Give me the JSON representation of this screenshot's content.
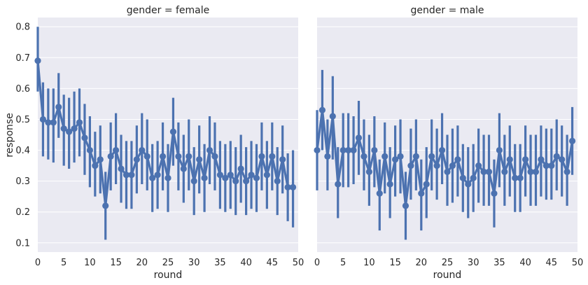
{
  "chart_data": [
    {
      "type": "line",
      "title": "gender = female",
      "xlabel": "round",
      "ylabel": "response",
      "xlim": [
        0,
        50
      ],
      "ylim": [
        0.07,
        0.83
      ],
      "xticks": [
        "0",
        "5",
        "10",
        "15",
        "20",
        "25",
        "30",
        "35",
        "40",
        "45",
        "50"
      ],
      "yticks": [
        "0.1",
        "0.2",
        "0.3",
        "0.4",
        "0.5",
        "0.6",
        "0.7",
        "0.8"
      ],
      "grid": true,
      "color": "#4c72b0",
      "x": [
        0,
        1,
        2,
        3,
        4,
        5,
        6,
        7,
        8,
        9,
        10,
        11,
        12,
        13,
        14,
        15,
        16,
        17,
        18,
        19,
        20,
        21,
        22,
        23,
        24,
        25,
        26,
        27,
        28,
        29,
        30,
        31,
        32,
        33,
        34,
        35,
        36,
        37,
        38,
        39,
        40,
        41,
        42,
        43,
        44,
        45,
        46,
        47,
        48,
        49
      ],
      "y": [
        0.69,
        0.5,
        0.49,
        0.49,
        0.54,
        0.47,
        0.46,
        0.47,
        0.49,
        0.44,
        0.4,
        0.35,
        0.37,
        0.22,
        0.38,
        0.4,
        0.34,
        0.32,
        0.32,
        0.37,
        0.4,
        0.38,
        0.31,
        0.32,
        0.38,
        0.31,
        0.46,
        0.38,
        0.34,
        0.38,
        0.3,
        0.37,
        0.31,
        0.4,
        0.38,
        0.32,
        0.31,
        0.32,
        0.3,
        0.34,
        0.3,
        0.32,
        0.31,
        0.38,
        0.32,
        0.38,
        0.3,
        0.37,
        0.28,
        0.28
      ],
      "ci_low": [
        0.59,
        0.38,
        0.37,
        0.36,
        0.44,
        0.35,
        0.34,
        0.36,
        0.38,
        0.32,
        0.28,
        0.25,
        0.26,
        0.11,
        0.27,
        0.29,
        0.23,
        0.21,
        0.21,
        0.26,
        0.29,
        0.27,
        0.2,
        0.21,
        0.27,
        0.2,
        0.35,
        0.27,
        0.23,
        0.27,
        0.19,
        0.26,
        0.2,
        0.29,
        0.27,
        0.21,
        0.2,
        0.21,
        0.19,
        0.23,
        0.19,
        0.21,
        0.2,
        0.27,
        0.21,
        0.27,
        0.19,
        0.26,
        0.17,
        0.15
      ],
      "ci_high": [
        0.8,
        0.62,
        0.6,
        0.6,
        0.65,
        0.58,
        0.57,
        0.59,
        0.6,
        0.55,
        0.51,
        0.46,
        0.48,
        0.33,
        0.49,
        0.52,
        0.45,
        0.43,
        0.43,
        0.48,
        0.52,
        0.5,
        0.42,
        0.43,
        0.49,
        0.42,
        0.57,
        0.49,
        0.45,
        0.5,
        0.41,
        0.48,
        0.42,
        0.51,
        0.49,
        0.43,
        0.42,
        0.43,
        0.41,
        0.45,
        0.41,
        0.43,
        0.42,
        0.49,
        0.43,
        0.49,
        0.41,
        0.48,
        0.39,
        0.4
      ]
    },
    {
      "type": "line",
      "title": "gender = male",
      "xlabel": "round",
      "ylabel": "",
      "xlim": [
        0,
        50
      ],
      "ylim": [
        0.07,
        0.83
      ],
      "xticks": [
        "0",
        "5",
        "10",
        "15",
        "20",
        "25",
        "30",
        "35",
        "40",
        "45",
        "50"
      ],
      "yticks": [],
      "grid": true,
      "color": "#4c72b0",
      "x": [
        0,
        1,
        2,
        3,
        4,
        5,
        6,
        7,
        8,
        9,
        10,
        11,
        12,
        13,
        14,
        15,
        16,
        17,
        18,
        19,
        20,
        21,
        22,
        23,
        24,
        25,
        26,
        27,
        28,
        29,
        30,
        31,
        32,
        33,
        34,
        35,
        36,
        37,
        38,
        39,
        40,
        41,
        42,
        43,
        44,
        45,
        46,
        47,
        48,
        49
      ],
      "y": [
        0.4,
        0.53,
        0.38,
        0.51,
        0.29,
        0.4,
        0.4,
        0.4,
        0.44,
        0.38,
        0.33,
        0.4,
        0.26,
        0.38,
        0.29,
        0.37,
        0.38,
        0.22,
        0.35,
        0.38,
        0.26,
        0.29,
        0.38,
        0.35,
        0.4,
        0.33,
        0.35,
        0.37,
        0.31,
        0.29,
        0.31,
        0.35,
        0.33,
        0.33,
        0.26,
        0.4,
        0.33,
        0.37,
        0.31,
        0.31,
        0.37,
        0.33,
        0.33,
        0.37,
        0.35,
        0.35,
        0.38,
        0.37,
        0.33,
        0.43
      ],
      "ci_low": [
        0.27,
        0.4,
        0.27,
        0.37,
        0.18,
        0.28,
        0.28,
        0.29,
        0.32,
        0.27,
        0.22,
        0.28,
        0.14,
        0.26,
        0.18,
        0.25,
        0.26,
        0.11,
        0.24,
        0.27,
        0.14,
        0.18,
        0.27,
        0.24,
        0.29,
        0.22,
        0.23,
        0.25,
        0.2,
        0.18,
        0.2,
        0.23,
        0.22,
        0.22,
        0.15,
        0.28,
        0.22,
        0.25,
        0.2,
        0.2,
        0.25,
        0.22,
        0.22,
        0.25,
        0.24,
        0.24,
        0.27,
        0.25,
        0.22,
        0.32
      ],
      "ci_high": [
        0.53,
        0.66,
        0.5,
        0.64,
        0.41,
        0.52,
        0.52,
        0.51,
        0.56,
        0.5,
        0.45,
        0.51,
        0.37,
        0.49,
        0.41,
        0.48,
        0.5,
        0.33,
        0.47,
        0.5,
        0.37,
        0.41,
        0.5,
        0.47,
        0.52,
        0.45,
        0.47,
        0.48,
        0.42,
        0.41,
        0.42,
        0.47,
        0.45,
        0.45,
        0.37,
        0.52,
        0.45,
        0.48,
        0.42,
        0.42,
        0.48,
        0.45,
        0.45,
        0.48,
        0.47,
        0.47,
        0.5,
        0.48,
        0.45,
        0.54
      ]
    }
  ]
}
